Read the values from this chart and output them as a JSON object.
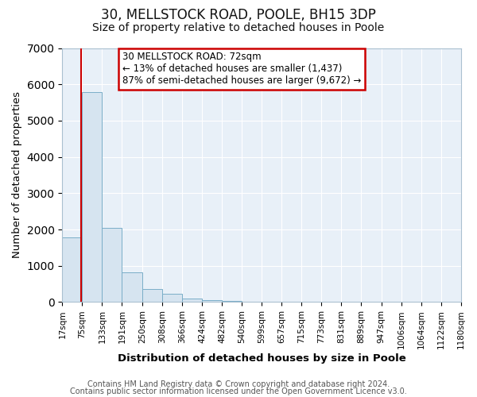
{
  "title": "30, MELLSTOCK ROAD, POOLE, BH15 3DP",
  "subtitle": "Size of property relative to detached houses in Poole",
  "xlabel": "Distribution of detached houses by size in Poole",
  "ylabel": "Number of detached properties",
  "bar_edges": [
    17,
    75,
    133,
    191,
    250,
    308,
    366,
    424,
    482,
    540,
    599,
    657,
    715,
    773,
    831,
    889,
    947,
    1006,
    1064,
    1122,
    1180
  ],
  "bar_heights": [
    1780,
    5780,
    2050,
    820,
    370,
    220,
    100,
    60,
    30,
    0,
    0,
    0,
    0,
    0,
    0,
    0,
    0,
    0,
    0,
    0
  ],
  "bar_color": "#d6e4f0",
  "bar_edgecolor": "#7aaec8",
  "vline_x": 72,
  "vline_color": "#cc0000",
  "annotation_title": "30 MELLSTOCK ROAD: 72sqm",
  "annotation_line1": "← 13% of detached houses are smaller (1,437)",
  "annotation_line2": "87% of semi-detached houses are larger (9,672) →",
  "annotation_box_edgecolor": "#cc0000",
  "annotation_box_facecolor": "#ffffff",
  "ylim": [
    0,
    7000
  ],
  "tick_labels": [
    "17sqm",
    "75sqm",
    "133sqm",
    "191sqm",
    "250sqm",
    "308sqm",
    "366sqm",
    "424sqm",
    "482sqm",
    "540sqm",
    "599sqm",
    "657sqm",
    "715sqm",
    "773sqm",
    "831sqm",
    "889sqm",
    "947sqm",
    "1006sqm",
    "1064sqm",
    "1122sqm",
    "1180sqm"
  ],
  "footer1": "Contains HM Land Registry data © Crown copyright and database right 2024.",
  "footer2": "Contains public sector information licensed under the Open Government Licence v3.0.",
  "background_color": "#ffffff",
  "plot_background": "#e8f0f8",
  "grid_color": "#ffffff",
  "title_fontsize": 12,
  "subtitle_fontsize": 10,
  "axis_label_fontsize": 9.5,
  "tick_fontsize": 7.5,
  "footer_fontsize": 7
}
